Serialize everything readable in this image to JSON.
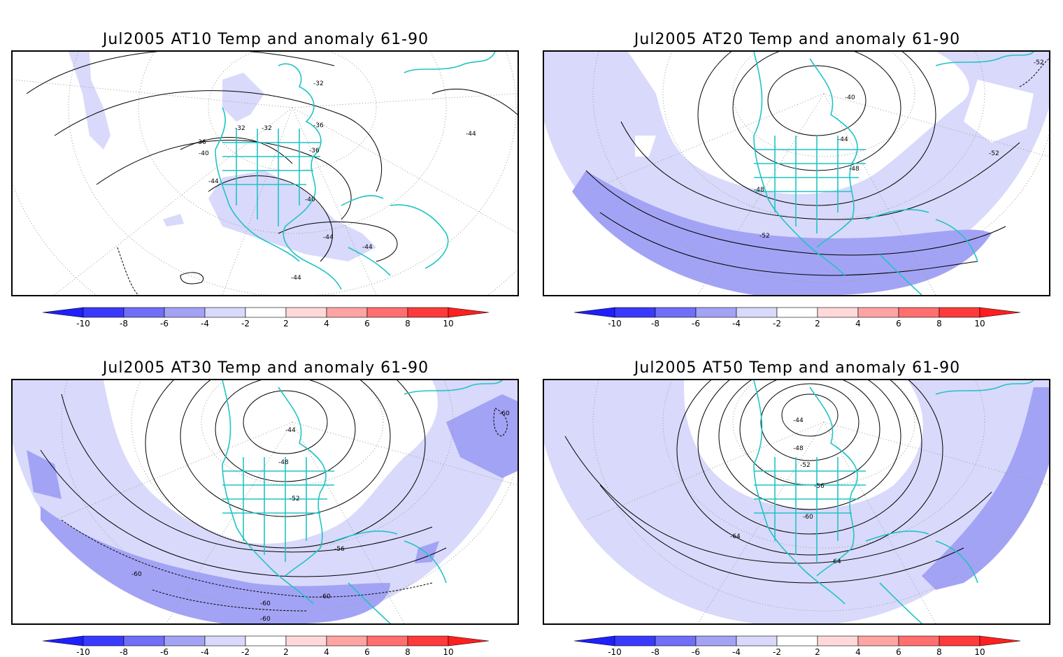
{
  "panels": [
    {
      "title": "Jul2005 AT10 Temp and anomaly 61-90",
      "level": "AT10",
      "contour_labels": [
        "-32",
        "-32",
        "-32",
        "-36",
        "-36",
        "-36",
        "-40",
        "-40",
        "-44",
        "-44",
        "-44",
        "-44",
        "-44"
      ],
      "anomaly_shading": "light-blue mostly west coast and Atlantic, small patches"
    },
    {
      "title": "Jul2005 AT20 Temp and anomaly 61-90",
      "level": "AT20",
      "contour_labels": [
        "-40",
        "-44",
        "-48",
        "-48",
        "-52",
        "-52",
        "-52"
      ],
      "anomaly_shading": "light-blue widespread, medium-blue band in south"
    },
    {
      "title": "Jul2005 AT30 Temp and anomaly 61-90",
      "level": "AT30",
      "contour_labels": [
        "-44",
        "-48",
        "-52",
        "-56",
        "-60",
        "-60",
        "-60",
        "-60",
        "-60"
      ],
      "anomaly_shading": "light-blue widespread, medium-blue in south and northeast"
    },
    {
      "title": "Jul2005 AT50 Temp and anomaly 61-90",
      "level": "AT50",
      "contour_labels": [
        "-44",
        "-48",
        "-52",
        "-56",
        "-60",
        "-64",
        "-64"
      ],
      "anomaly_shading": "light-blue nearly everywhere, medium-blue along Atlantic southeast"
    }
  ],
  "colorbar": {
    "ticks": [
      "-10",
      "-8",
      "-6",
      "-4",
      "-2",
      "2",
      "4",
      "6",
      "8",
      "10"
    ],
    "colors": [
      "#1f1fff",
      "#3a3aff",
      "#6f6ff7",
      "#a3a3f5",
      "#d9d9fb",
      "#ffffff",
      "#ffd9d9",
      "#ffa3a3",
      "#ff6f6f",
      "#ff3a3a",
      "#ff1f1f"
    ]
  },
  "colors": {
    "coastline": "#20c4c4",
    "light_blue": "#d9d9fb",
    "medium_blue": "#a3a3f5",
    "contour": "#000000"
  }
}
